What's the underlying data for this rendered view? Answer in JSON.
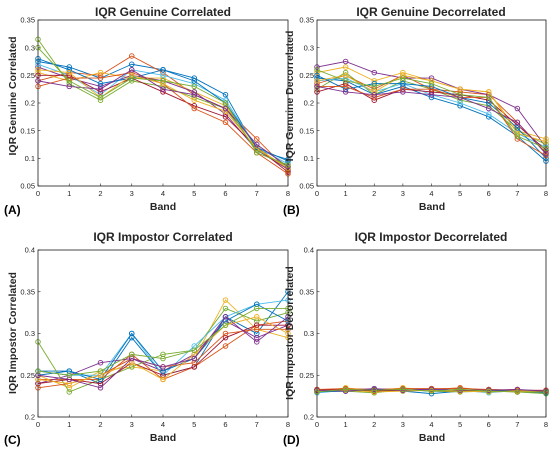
{
  "colors": [
    "#0072BD",
    "#D95319",
    "#EDB120",
    "#7E2F8E",
    "#77AC30",
    "#4DBEEE",
    "#A2142F",
    "#0072BD",
    "#D95319",
    "#EDB120",
    "#7E2F8E",
    "#77AC30"
  ],
  "chart_data": [
    {
      "type": "line",
      "panel_label": "(A)",
      "title": "IQR Genuine Correlated",
      "xlabel": "Band",
      "ylabel": "IQR Genuine Correlated",
      "xlim": [
        0,
        8
      ],
      "ylim": [
        0.05,
        0.35
      ],
      "xticks": [
        "0",
        "1",
        "2",
        "3",
        "4",
        "5",
        "6",
        "7",
        "8"
      ],
      "yticks": [
        "0.05",
        "0.1",
        "0.15",
        "0.2",
        "0.25",
        "0.3",
        "0.35"
      ],
      "ytick_values": [
        0.05,
        0.1,
        0.15,
        0.2,
        0.25,
        0.3,
        0.35
      ],
      "x": [
        0,
        1,
        2,
        3,
        4,
        5,
        6,
        7,
        8
      ],
      "series": [
        {
          "values": [
            0.275,
            0.265,
            0.245,
            0.27,
            0.26,
            0.245,
            0.215,
            0.115,
            0.098
          ]
        },
        {
          "values": [
            0.24,
            0.255,
            0.25,
            0.285,
            0.255,
            0.215,
            0.19,
            0.135,
            0.078
          ]
        },
        {
          "values": [
            0.255,
            0.24,
            0.255,
            0.245,
            0.245,
            0.22,
            0.195,
            0.12,
            0.08
          ]
        },
        {
          "values": [
            0.265,
            0.245,
            0.23,
            0.25,
            0.24,
            0.22,
            0.18,
            0.115,
            0.08
          ]
        },
        {
          "values": [
            0.315,
            0.235,
            0.205,
            0.24,
            0.23,
            0.21,
            0.19,
            0.115,
            0.085
          ]
        },
        {
          "values": [
            0.27,
            0.25,
            0.215,
            0.26,
            0.25,
            0.235,
            0.205,
            0.12,
            0.09
          ]
        },
        {
          "values": [
            0.25,
            0.25,
            0.22,
            0.245,
            0.22,
            0.195,
            0.175,
            0.12,
            0.075
          ]
        },
        {
          "values": [
            0.28,
            0.26,
            0.235,
            0.245,
            0.26,
            0.24,
            0.2,
            0.12,
            0.095
          ]
        },
        {
          "values": [
            0.23,
            0.245,
            0.245,
            0.255,
            0.235,
            0.19,
            0.165,
            0.11,
            0.072
          ]
        },
        {
          "values": [
            0.26,
            0.255,
            0.21,
            0.25,
            0.235,
            0.205,
            0.185,
            0.118,
            0.082
          ]
        },
        {
          "values": [
            0.24,
            0.23,
            0.225,
            0.26,
            0.225,
            0.215,
            0.19,
            0.125,
            0.085
          ]
        },
        {
          "values": [
            0.3,
            0.24,
            0.21,
            0.245,
            0.24,
            0.23,
            0.2,
            0.11,
            0.088
          ]
        }
      ]
    },
    {
      "type": "line",
      "panel_label": "(B)",
      "title": "IQR Genuine Decorrelated",
      "xlabel": "Band",
      "ylabel": "IQR Genuine Decorrelated",
      "xlim": [
        0,
        8
      ],
      "ylim": [
        0.05,
        0.35
      ],
      "xticks": [
        "0",
        "1",
        "2",
        "3",
        "4",
        "5",
        "6",
        "7",
        "8"
      ],
      "yticks": [
        "0.05",
        "0.1",
        "0.15",
        "0.2",
        "0.25",
        "0.3",
        "0.35"
      ],
      "ytick_values": [
        0.05,
        0.1,
        0.15,
        0.2,
        0.25,
        0.3,
        0.35
      ],
      "x": [
        0,
        1,
        2,
        3,
        4,
        5,
        6,
        7,
        8
      ],
      "series": [
        {
          "values": [
            0.245,
            0.24,
            0.215,
            0.23,
            0.21,
            0.195,
            0.175,
            0.14,
            0.095
          ]
        },
        {
          "values": [
            0.235,
            0.25,
            0.225,
            0.25,
            0.225,
            0.22,
            0.215,
            0.165,
            0.11
          ]
        },
        {
          "values": [
            0.255,
            0.265,
            0.24,
            0.255,
            0.24,
            0.225,
            0.22,
            0.15,
            0.135
          ]
        },
        {
          "values": [
            0.265,
            0.275,
            0.255,
            0.245,
            0.245,
            0.225,
            0.215,
            0.19,
            0.12
          ]
        },
        {
          "values": [
            0.225,
            0.255,
            0.215,
            0.24,
            0.225,
            0.205,
            0.195,
            0.15,
            0.125
          ]
        },
        {
          "values": [
            0.24,
            0.245,
            0.22,
            0.235,
            0.215,
            0.2,
            0.18,
            0.145,
            0.12
          ]
        },
        {
          "values": [
            0.22,
            0.235,
            0.205,
            0.225,
            0.22,
            0.215,
            0.205,
            0.16,
            0.115
          ]
        },
        {
          "values": [
            0.25,
            0.225,
            0.235,
            0.235,
            0.23,
            0.21,
            0.2,
            0.155,
            0.1
          ]
        },
        {
          "values": [
            0.23,
            0.23,
            0.21,
            0.225,
            0.225,
            0.21,
            0.21,
            0.135,
            0.105
          ]
        },
        {
          "values": [
            0.24,
            0.25,
            0.22,
            0.25,
            0.24,
            0.225,
            0.22,
            0.145,
            0.13
          ]
        },
        {
          "values": [
            0.23,
            0.22,
            0.215,
            0.22,
            0.215,
            0.21,
            0.19,
            0.165,
            0.108
          ]
        },
        {
          "values": [
            0.26,
            0.24,
            0.23,
            0.245,
            0.235,
            0.215,
            0.21,
            0.14,
            0.118
          ]
        }
      ]
    },
    {
      "type": "line",
      "panel_label": "(C)",
      "title": "IQR Impostor Correlated",
      "xlabel": "Band",
      "ylabel": "IQR Impostor Correlated",
      "xlim": [
        0,
        8
      ],
      "ylim": [
        0.2,
        0.4
      ],
      "xticks": [
        "0",
        "1",
        "2",
        "3",
        "4",
        "5",
        "6",
        "7",
        "8"
      ],
      "yticks": [
        "0.2",
        "0.25",
        "0.3",
        "0.35",
        "0.4"
      ],
      "ytick_values": [
        0.2,
        0.25,
        0.3,
        0.35,
        0.4
      ],
      "x": [
        0,
        1,
        2,
        3,
        4,
        5,
        6,
        7,
        8
      ],
      "series": [
        {
          "values": [
            0.255,
            0.255,
            0.24,
            0.295,
            0.25,
            0.26,
            0.32,
            0.3,
            0.35
          ]
        },
        {
          "values": [
            0.245,
            0.245,
            0.245,
            0.275,
            0.245,
            0.26,
            0.285,
            0.31,
            0.315
          ]
        },
        {
          "values": [
            0.25,
            0.235,
            0.255,
            0.26,
            0.255,
            0.27,
            0.34,
            0.305,
            0.295
          ]
        },
        {
          "values": [
            0.24,
            0.25,
            0.265,
            0.27,
            0.255,
            0.275,
            0.315,
            0.295,
            0.31
          ]
        },
        {
          "values": [
            0.29,
            0.23,
            0.245,
            0.26,
            0.275,
            0.28,
            0.33,
            0.315,
            0.325
          ]
        },
        {
          "values": [
            0.255,
            0.25,
            0.25,
            0.3,
            0.25,
            0.285,
            0.32,
            0.335,
            0.34
          ]
        },
        {
          "values": [
            0.24,
            0.245,
            0.24,
            0.265,
            0.25,
            0.26,
            0.295,
            0.31,
            0.31
          ]
        },
        {
          "values": [
            0.25,
            0.255,
            0.245,
            0.3,
            0.255,
            0.27,
            0.315,
            0.335,
            0.315
          ]
        },
        {
          "values": [
            0.235,
            0.24,
            0.25,
            0.27,
            0.26,
            0.265,
            0.3,
            0.305,
            0.305
          ]
        },
        {
          "values": [
            0.245,
            0.24,
            0.25,
            0.265,
            0.245,
            0.275,
            0.31,
            0.32,
            0.3
          ]
        },
        {
          "values": [
            0.25,
            0.245,
            0.235,
            0.27,
            0.26,
            0.27,
            0.32,
            0.29,
            0.32
          ]
        },
        {
          "values": [
            0.255,
            0.25,
            0.255,
            0.275,
            0.27,
            0.28,
            0.31,
            0.33,
            0.33
          ]
        }
      ]
    },
    {
      "type": "line",
      "panel_label": "(D)",
      "title": "IQR Impostor Decorrelated",
      "xlabel": "Band",
      "ylabel": "IQR Impostor Decorrelated",
      "xlim": [
        0,
        8
      ],
      "ylim": [
        0.2,
        0.4
      ],
      "xticks": [
        "0",
        "1",
        "2",
        "3",
        "4",
        "5",
        "6",
        "7",
        "8"
      ],
      "yticks": [
        "0.2",
        "0.25",
        "0.3",
        "0.35",
        "0.4"
      ],
      "ytick_values": [
        0.2,
        0.25,
        0.3,
        0.35,
        0.4
      ],
      "x": [
        0,
        1,
        2,
        3,
        4,
        5,
        6,
        7,
        8
      ],
      "series": [
        {
          "values": [
            0.231,
            0.233,
            0.232,
            0.231,
            0.228,
            0.231,
            0.232,
            0.231,
            0.23
          ]
        },
        {
          "values": [
            0.232,
            0.234,
            0.233,
            0.234,
            0.233,
            0.235,
            0.232,
            0.233,
            0.229
          ]
        },
        {
          "values": [
            0.23,
            0.235,
            0.231,
            0.235,
            0.232,
            0.233,
            0.23,
            0.231,
            0.231
          ]
        },
        {
          "values": [
            0.233,
            0.232,
            0.234,
            0.232,
            0.234,
            0.232,
            0.233,
            0.232,
            0.232
          ]
        },
        {
          "values": [
            0.231,
            0.231,
            0.229,
            0.233,
            0.231,
            0.23,
            0.231,
            0.23,
            0.228
          ]
        },
        {
          "values": [
            0.229,
            0.232,
            0.232,
            0.231,
            0.233,
            0.232,
            0.229,
            0.232,
            0.23
          ]
        },
        {
          "values": [
            0.232,
            0.233,
            0.231,
            0.232,
            0.232,
            0.231,
            0.232,
            0.23,
            0.231
          ]
        },
        {
          "values": [
            0.23,
            0.231,
            0.233,
            0.233,
            0.231,
            0.233,
            0.231,
            0.231,
            0.229
          ]
        },
        {
          "values": [
            0.233,
            0.234,
            0.232,
            0.234,
            0.234,
            0.234,
            0.233,
            0.232,
            0.232
          ]
        },
        {
          "values": [
            0.231,
            0.232,
            0.23,
            0.231,
            0.232,
            0.231,
            0.23,
            0.231,
            0.23
          ]
        },
        {
          "values": [
            0.232,
            0.231,
            0.233,
            0.232,
            0.233,
            0.232,
            0.232,
            0.233,
            0.231
          ]
        },
        {
          "values": [
            0.23,
            0.233,
            0.232,
            0.233,
            0.231,
            0.233,
            0.231,
            0.23,
            0.23
          ]
        }
      ]
    }
  ]
}
